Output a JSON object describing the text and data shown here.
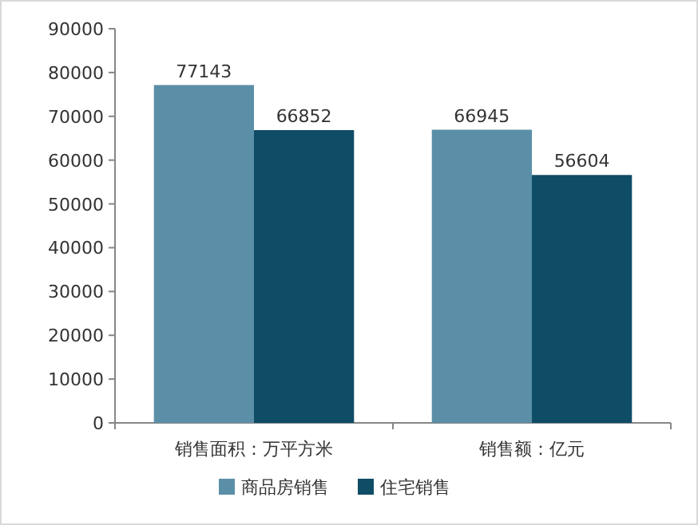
{
  "chart_data": {
    "type": "bar",
    "categories": [
      "销售面积：万平方米",
      "销售额：亿元"
    ],
    "series": [
      {
        "name": "商品房销售",
        "color": "#5b8fa8",
        "values": [
          77143,
          66945
        ]
      },
      {
        "name": "住宅销售",
        "color": "#0f4c66",
        "values": [
          66852,
          56604
        ]
      }
    ],
    "ylim": [
      0,
      90000
    ],
    "yticks": [
      0,
      10000,
      20000,
      30000,
      40000,
      50000,
      60000,
      70000,
      80000,
      90000
    ],
    "data_labels": true,
    "legend": "bottom",
    "grid": false
  }
}
